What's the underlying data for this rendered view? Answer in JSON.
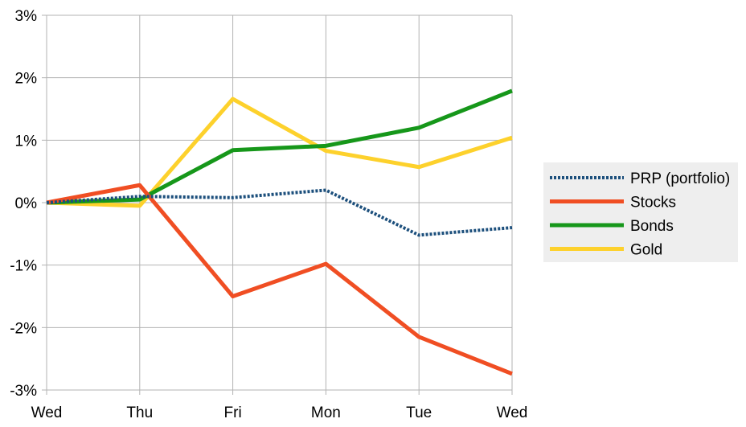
{
  "chart_data": {
    "type": "line",
    "title": "",
    "xlabel": "",
    "ylabel": "",
    "categories": [
      "Wed",
      "Thu",
      "Fri",
      "Mon",
      "Tue",
      "Wed"
    ],
    "ylim": [
      -3,
      3
    ],
    "yticks": [
      3,
      2,
      1,
      0,
      -1,
      -2,
      -3
    ],
    "ytick_labels": [
      "3%",
      "2%",
      "1%",
      "0%",
      "-1%",
      "-2%",
      "-3%"
    ],
    "grid": true,
    "legend_position": "right",
    "series": [
      {
        "name": "PRP (portfolio)",
        "color": "#1c4f7c",
        "style": "dotted",
        "values": [
          0.0,
          0.1,
          0.08,
          0.2,
          -0.52,
          -0.4
        ]
      },
      {
        "name": "Stocks",
        "color": "#f04e23",
        "style": "solid",
        "values": [
          0.0,
          0.28,
          -1.5,
          -0.98,
          -2.15,
          -2.74
        ]
      },
      {
        "name": "Bonds",
        "color": "#16971a",
        "style": "solid",
        "values": [
          0.0,
          0.05,
          0.84,
          0.91,
          1.2,
          1.79
        ]
      },
      {
        "name": "Gold",
        "color": "#fdd12c",
        "style": "solid",
        "values": [
          0.0,
          -0.05,
          1.66,
          0.83,
          0.57,
          1.04
        ]
      }
    ]
  }
}
